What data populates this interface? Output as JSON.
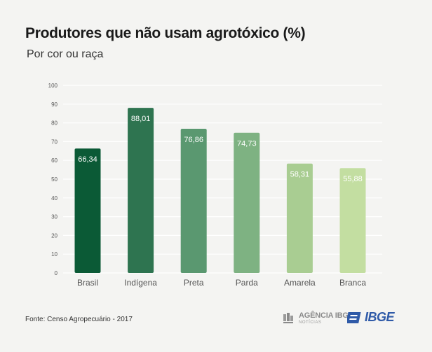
{
  "header": {
    "title": "Produtores que não usam agrotóxico (%)",
    "subtitle": "Por cor ou raça"
  },
  "footer": {
    "source": "Fonte: Censo Agropecuário - 2017",
    "agencia_main": "AGÊNCIA IBGE",
    "agencia_sub": "NOTÍCIAS",
    "ibge": "IBGE"
  },
  "colors": {
    "bars": [
      "#0b5a36",
      "#2e7450",
      "#5a9870",
      "#7eb282",
      "#a9cd92",
      "#c3dea1"
    ],
    "bar_label_text": "#ffffff",
    "grid": "#ffffff",
    "axis_text": "#555555",
    "ibge_blue": "#2f5aa8"
  },
  "chart_data": {
    "type": "bar",
    "categories": [
      "Brasil",
      "Indígena",
      "Preta",
      "Parda",
      "Amarela",
      "Branca"
    ],
    "values": [
      66.34,
      88.01,
      76.86,
      74.73,
      58.31,
      55.88
    ],
    "value_labels": [
      "66,34",
      "88,01",
      "76,86",
      "74,73",
      "58,31",
      "55,88"
    ],
    "title": "Produtores que não usam agrotóxico (%)",
    "subtitle": "Por cor ou raça",
    "xlabel": "",
    "ylabel": "",
    "ylim": [
      0,
      100
    ],
    "yticks": [
      0,
      10,
      20,
      30,
      40,
      50,
      60,
      70,
      80,
      90,
      100
    ],
    "grid": true,
    "legend": "none"
  }
}
